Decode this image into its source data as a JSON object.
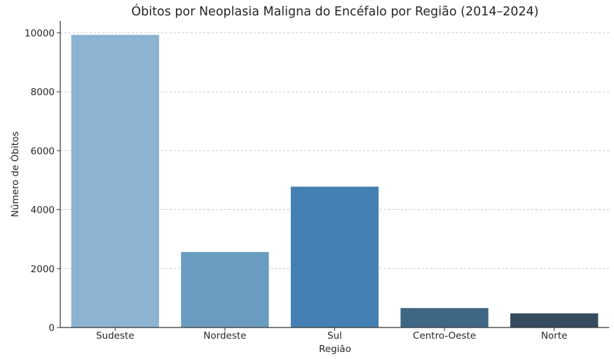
{
  "chart_data": {
    "type": "bar",
    "title": "Óbitos por Neoplasia Maligna do Encéfalo por Região (2014–2024)",
    "xlabel": "Região",
    "ylabel": "Número de Óbitos",
    "categories": [
      "Sudeste",
      "Nordeste",
      "Sul",
      "Centro-Oeste",
      "Norte"
    ],
    "values": [
      9930,
      2560,
      4780,
      660,
      480
    ],
    "colors": [
      "#8cb3d1",
      "#6a9cc0",
      "#4480b3",
      "#3e6785",
      "#344a5f"
    ],
    "ylim": [
      0,
      10400
    ],
    "yticks": [
      0,
      2000,
      4000,
      6000,
      8000,
      10000
    ],
    "ytick_labels": [
      "0",
      "2000",
      "4000",
      "6000",
      "8000",
      "10000"
    ],
    "grid": "horizontal dashed",
    "legend": "none"
  }
}
